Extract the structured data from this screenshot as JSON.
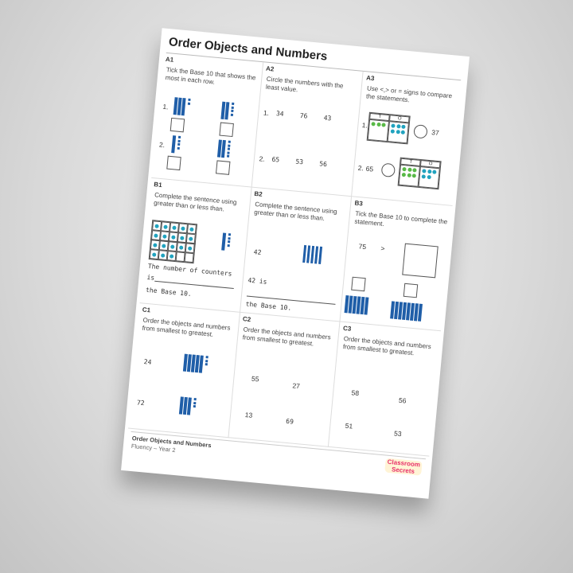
{
  "header": {
    "title": "Order Objects and Numbers"
  },
  "sections": [
    {
      "label": "A1",
      "instruction": "Tick the Base 10 that shows the most in each row.",
      "items": [
        "1.",
        "2."
      ]
    },
    {
      "label": "A2",
      "instruction": "Circle the numbers with the least value.",
      "items": [
        "1.",
        "34",
        "76",
        "43",
        "2.",
        "65",
        "53",
        "56"
      ]
    },
    {
      "label": "A3",
      "instruction": "Use <,> or = signs to compare the statements.",
      "items": [
        "1.",
        "37",
        "2.",
        "65"
      ],
      "table_headers": [
        "T",
        "O"
      ]
    },
    {
      "label": "B1",
      "instruction": "Complete the sentence using greater than or less than.",
      "sentence": [
        "The number of counters",
        "is",
        "the Base 10."
      ]
    },
    {
      "label": "B2",
      "instruction": "Complete the sentence using greater than or less than.",
      "sentence": [
        "42",
        "42 is",
        "the Base 10."
      ]
    },
    {
      "label": "B3",
      "instruction": "Tick the Base 10 to complete the statement.",
      "items": [
        "75",
        ">"
      ]
    },
    {
      "label": "C1",
      "instruction": "Order the objects and numbers from smallest to greatest.",
      "items": [
        "24",
        "72"
      ]
    },
    {
      "label": "C2",
      "instruction": "Order the objects and numbers from smallest to greatest.",
      "items": [
        "55",
        "27",
        "13",
        "69"
      ]
    },
    {
      "label": "C3",
      "instruction": "Order the objects and numbers from smallest to greatest.",
      "items": [
        "58",
        "56",
        "51",
        "53"
      ]
    }
  ],
  "footer": {
    "title": "Order Objects and Numbers",
    "subtitle": "Fluency – Year 2",
    "logo": "Classroom Secrets"
  }
}
